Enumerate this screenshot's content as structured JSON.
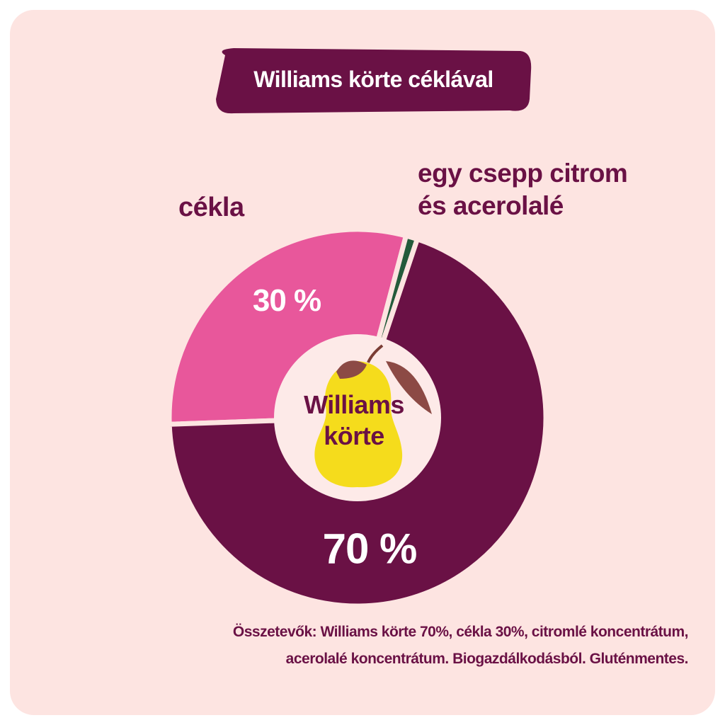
{
  "chart_data": {
    "type": "donut",
    "title": "Williams körte céklával",
    "categories": [
      "cékla",
      "egy csepp citrom és acerolalé",
      "Williams körte"
    ],
    "values": [
      30,
      1,
      70
    ],
    "value_labels": [
      "30 %",
      null,
      "70 %"
    ],
    "colors": [
      "#e8579b",
      "#235b3b",
      "#6a1145"
    ],
    "note": "Összetevők: Williams körte 70%, cékla 30%, citromlé koncentrátum, acerolalé koncentrátum. Biogazdálkodásból. Gluténmentes."
  }
}
